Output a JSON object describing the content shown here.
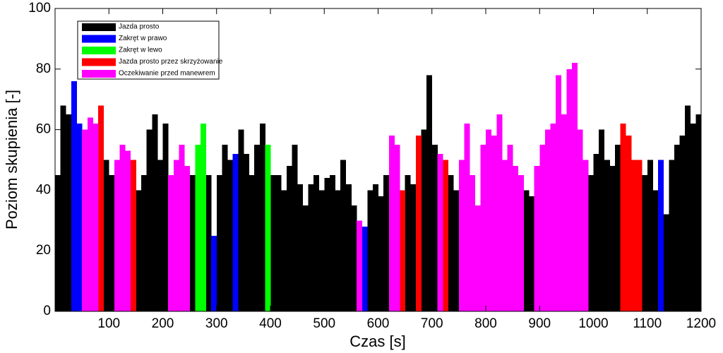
{
  "chart_data": {
    "type": "step-area",
    "x_label": "Czas [s]",
    "y_label": "Poziom skupienia [-]",
    "xlim": [
      0,
      1200
    ],
    "ylim": [
      0,
      100
    ],
    "xticks": [
      100,
      200,
      300,
      400,
      500,
      600,
      700,
      800,
      900,
      1000,
      1100,
      1200
    ],
    "yticks": [
      0,
      20,
      40,
      60,
      80,
      100
    ],
    "legend": "upper left",
    "grid": false,
    "x": [
      5,
      15,
      25,
      35,
      45,
      55,
      65,
      75,
      85,
      95,
      105,
      115,
      125,
      135,
      145,
      155,
      165,
      175,
      185,
      195,
      205,
      215,
      225,
      235,
      245,
      255,
      265,
      275,
      285,
      295,
      305,
      315,
      325,
      335,
      345,
      355,
      365,
      375,
      385,
      395,
      405,
      415,
      425,
      435,
      445,
      455,
      465,
      475,
      485,
      495,
      505,
      515,
      525,
      535,
      545,
      555,
      565,
      575,
      585,
      595,
      605,
      615,
      625,
      635,
      645,
      655,
      665,
      675,
      685,
      695,
      705,
      715,
      725,
      735,
      745,
      755,
      765,
      775,
      785,
      795,
      805,
      815,
      825,
      835,
      845,
      855,
      865,
      875,
      885,
      895,
      905,
      915,
      925,
      935,
      945,
      955,
      965,
      975,
      985,
      995,
      1005,
      1015,
      1025,
      1035,
      1045,
      1055,
      1065,
      1075,
      1085,
      1095,
      1105,
      1115,
      1125,
      1135,
      1145,
      1155,
      1165,
      1175,
      1185,
      1195
    ],
    "series": [
      {
        "name": "Jazda prosto",
        "color": "#000000",
        "values": [
          45,
          68,
          65,
          null,
          null,
          null,
          null,
          null,
          null,
          50,
          45,
          null,
          null,
          null,
          null,
          40,
          45,
          60,
          65,
          50,
          62,
          null,
          null,
          null,
          null,
          45,
          null,
          null,
          45,
          null,
          45,
          55,
          50,
          null,
          60,
          52,
          45,
          55,
          62,
          null,
          45,
          45,
          40,
          48,
          55,
          42,
          35,
          42,
          45,
          40,
          44,
          45,
          40,
          50,
          42,
          35,
          null,
          null,
          40,
          42,
          38,
          45,
          null,
          null,
          null,
          45,
          42,
          null,
          60,
          78,
          55,
          null,
          null,
          45,
          40,
          null,
          null,
          null,
          null,
          null,
          null,
          null,
          null,
          null,
          null,
          null,
          null,
          40,
          38,
          null,
          null,
          null,
          null,
          null,
          null,
          null,
          null,
          null,
          null,
          45,
          52,
          60,
          50,
          48,
          55,
          null,
          null,
          null,
          null,
          45,
          50,
          40,
          null,
          32,
          50,
          55,
          58,
          68,
          62,
          65
        ]
      },
      {
        "name": "Zakręt w prawo",
        "color": "#0000ff",
        "values": [
          null,
          null,
          null,
          76,
          62,
          null,
          null,
          null,
          null,
          null,
          null,
          null,
          null,
          null,
          null,
          null,
          null,
          null,
          null,
          null,
          null,
          null,
          null,
          null,
          null,
          null,
          null,
          null,
          null,
          25,
          null,
          null,
          null,
          52,
          null,
          null,
          null,
          null,
          null,
          null,
          null,
          null,
          null,
          null,
          null,
          null,
          null,
          null,
          null,
          null,
          null,
          null,
          null,
          null,
          null,
          null,
          null,
          28,
          null,
          null,
          null,
          null,
          null,
          null,
          null,
          null,
          null,
          null,
          null,
          null,
          null,
          null,
          null,
          null,
          null,
          null,
          null,
          null,
          null,
          null,
          null,
          null,
          null,
          null,
          null,
          null,
          null,
          null,
          null,
          null,
          null,
          null,
          null,
          null,
          null,
          null,
          null,
          null,
          null,
          null,
          null,
          null,
          null,
          null,
          null,
          null,
          null,
          null,
          null,
          null,
          null,
          null,
          50,
          null,
          null,
          null,
          null,
          null,
          null,
          null
        ]
      },
      {
        "name": "Zakręt w lewo",
        "color": "#00ff00",
        "values": [
          null,
          null,
          null,
          null,
          null,
          null,
          null,
          null,
          null,
          null,
          null,
          null,
          null,
          null,
          null,
          null,
          null,
          null,
          null,
          null,
          null,
          null,
          null,
          null,
          null,
          null,
          55,
          62,
          null,
          null,
          null,
          null,
          null,
          null,
          null,
          null,
          null,
          null,
          null,
          55,
          null,
          null,
          null,
          null,
          null,
          null,
          null,
          null,
          null,
          null,
          null,
          null,
          null,
          null,
          null,
          null,
          null,
          null,
          null,
          null,
          null,
          null,
          null,
          null,
          null,
          null,
          null,
          null,
          null,
          null,
          null,
          null,
          null,
          null,
          null,
          null,
          null,
          null,
          null,
          null,
          null,
          null,
          null,
          null,
          null,
          null,
          null,
          null,
          null,
          null,
          null,
          null,
          null,
          null,
          null,
          null,
          null,
          null,
          null,
          null,
          null,
          null,
          null,
          null,
          null,
          null,
          null,
          null,
          null,
          null,
          null,
          null,
          null,
          null,
          null,
          null,
          null,
          null,
          null,
          null
        ]
      },
      {
        "name": "Jazda prosto przez skrzyżowanie",
        "color": "#ff0000",
        "values": [
          null,
          null,
          null,
          null,
          null,
          null,
          null,
          null,
          68,
          null,
          null,
          null,
          null,
          null,
          50,
          null,
          null,
          null,
          null,
          null,
          null,
          null,
          null,
          null,
          null,
          null,
          null,
          null,
          null,
          null,
          null,
          null,
          null,
          null,
          null,
          null,
          null,
          null,
          null,
          null,
          null,
          null,
          null,
          null,
          null,
          null,
          null,
          null,
          null,
          null,
          null,
          null,
          null,
          null,
          null,
          null,
          null,
          null,
          null,
          null,
          null,
          null,
          null,
          null,
          40,
          null,
          null,
          58,
          null,
          null,
          null,
          null,
          50,
          null,
          null,
          null,
          null,
          null,
          null,
          null,
          null,
          null,
          null,
          null,
          null,
          null,
          null,
          null,
          null,
          null,
          null,
          null,
          null,
          null,
          null,
          null,
          null,
          null,
          null,
          null,
          null,
          null,
          null,
          null,
          null,
          62,
          58,
          50,
          50,
          null,
          null,
          null,
          null,
          null,
          null,
          null,
          null,
          null,
          null,
          null
        ]
      },
      {
        "name": "Oczekiwanie przed manewrem",
        "color": "#ff00ff",
        "values": [
          null,
          null,
          null,
          null,
          null,
          60,
          64,
          62,
          null,
          null,
          null,
          50,
          55,
          53,
          null,
          null,
          null,
          null,
          null,
          null,
          null,
          45,
          50,
          55,
          48,
          null,
          null,
          null,
          null,
          null,
          null,
          null,
          null,
          null,
          null,
          null,
          null,
          null,
          null,
          null,
          null,
          null,
          null,
          null,
          null,
          null,
          null,
          null,
          null,
          null,
          null,
          null,
          null,
          null,
          null,
          null,
          30,
          null,
          null,
          null,
          null,
          null,
          58,
          55,
          null,
          null,
          null,
          null,
          null,
          null,
          null,
          52,
          null,
          null,
          null,
          50,
          62,
          45,
          35,
          55,
          60,
          58,
          65,
          50,
          55,
          48,
          45,
          null,
          null,
          48,
          55,
          60,
          62,
          78,
          65,
          80,
          82,
          60,
          50,
          null,
          null,
          null,
          null,
          null,
          null,
          null,
          null,
          null,
          null,
          null,
          null,
          null,
          null,
          null,
          null,
          null,
          null,
          null,
          null,
          null
        ]
      }
    ]
  }
}
